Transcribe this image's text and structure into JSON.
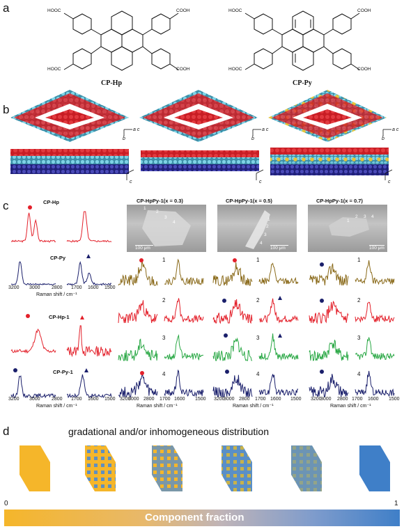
{
  "panel_a": {
    "letter": "a",
    "molecules": [
      {
        "caption": "CP-Hp",
        "groups": [
          "HOOC",
          "COOH",
          "HOOC",
          "COOH"
        ]
      },
      {
        "caption": "CP-Py",
        "groups": [
          "HOOC",
          "COOH",
          "HOOC",
          "COOH"
        ]
      }
    ]
  },
  "panel_b": {
    "letter": "b",
    "axis_labels": {
      "a": "a",
      "b": "b",
      "c": "c",
      "ac": "a c"
    }
  },
  "panel_c": {
    "letter": "c",
    "left_column": {
      "spectra": [
        {
          "title": "CP-Hp",
          "color": "#e3202a",
          "marker": "circle"
        },
        {
          "title": "CP-Py",
          "color": "#1a1f6b",
          "marker": "triangle"
        },
        {
          "title": "CP-Hp-1",
          "color": "#e3202a",
          "marker": "circle+triangle"
        },
        {
          "title": "CP-Py-1",
          "color": "#1a1f6b",
          "marker": "circle+triangle"
        }
      ],
      "x_ticks": [
        "3200",
        "3000",
        "2800",
        "1700",
        "1600",
        "1500"
      ],
      "x_title": "Raman shift / cm⁻¹"
    },
    "columns": [
      {
        "title": "CP-HpPy-1(x = 0.3)",
        "scale": "100 μm",
        "points": [
          "1",
          "2",
          "3",
          "4"
        ]
      },
      {
        "title": "CP-HpPy-1(x = 0.5)",
        "scale": "100 μm",
        "points": [
          "1",
          "2",
          "3",
          "4"
        ]
      },
      {
        "title": "CP-HpPy-1(x = 0.7)",
        "scale": "100 μm",
        "points": [
          "1",
          "2",
          "3",
          "4"
        ]
      }
    ],
    "row_numbers": [
      "1",
      "2",
      "3",
      "4"
    ],
    "row_colors": [
      "#8a6a1a",
      "#e3202a",
      "#2aa845",
      "#1a1f6b"
    ],
    "x_ticks": [
      "3200",
      "3000",
      "2800",
      "1700",
      "1600",
      "1500"
    ],
    "x_title": "Raman shift / cm⁻¹"
  },
  "panel_d": {
    "letter": "d",
    "heading": "gradational and/or inhomogeneous distribution",
    "colors": {
      "orange": "#f5b62a",
      "blue": "#3f7fc8"
    },
    "scale_min": "0",
    "scale_max": "1",
    "bar_label": "Component fraction"
  }
}
